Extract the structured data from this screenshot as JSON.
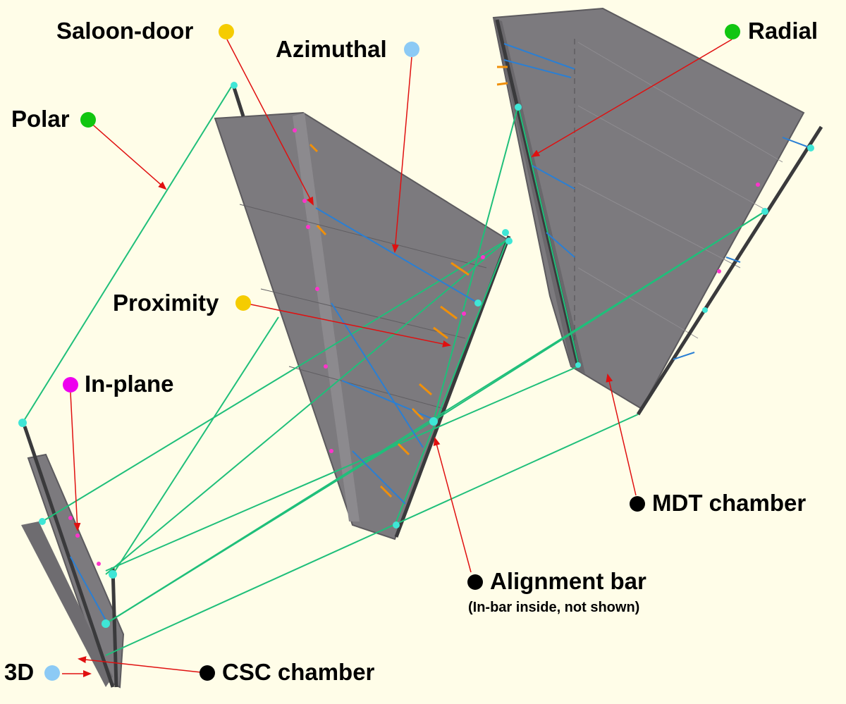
{
  "labels": {
    "saloon_door": "Saloon-door",
    "azimuthal": "Azimuthal",
    "radial": "Radial",
    "polar": "Polar",
    "proximity": "Proximity",
    "in_plane": "In-plane",
    "mdt_chamber": "MDT chamber",
    "alignment_bar": "Alignment bar",
    "alignment_bar_note": "(In-bar inside, not shown)",
    "three_d": "3D",
    "csc_chamber": "CSC chamber"
  },
  "colors": {
    "background": "#fffde8",
    "chamber": "#7c7a7e",
    "chamber_edge": "#5c5a5e",
    "bar": "#3a3a3c",
    "polar_line": "#1fbf7a",
    "azimuthal_line": "#2a7fd4",
    "proximity_mark": "#f0900a",
    "in_plane_mark": "#ff33cc",
    "arrow": "#e01010",
    "saloon_door_dot": "#f5cc00",
    "azimuthal_dot": "#8ccaf5",
    "radial_dot": "#11c611",
    "polar_dot": "#11c611",
    "proximity_dot": "#f5cc00",
    "in_plane_dot": "#ee00ee",
    "three_d_dot": "#8ccaf5",
    "black_dot": "#000000"
  }
}
